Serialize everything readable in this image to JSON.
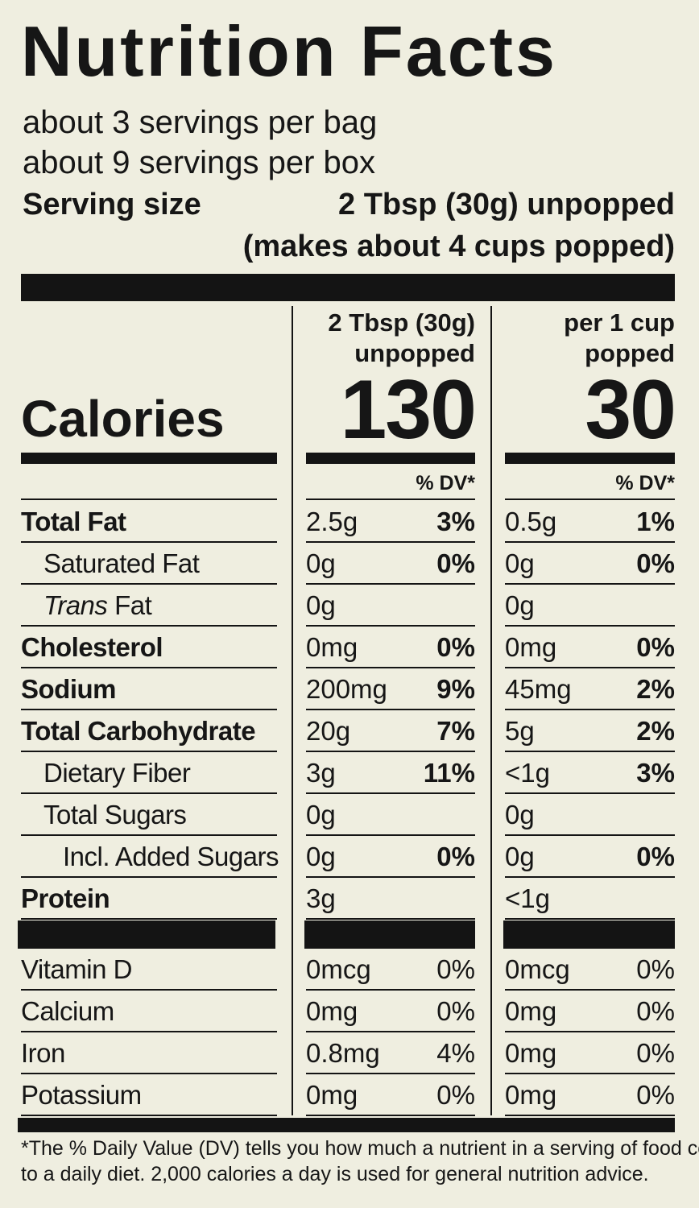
{
  "title": "Nutrition Facts",
  "servings": [
    "about 3 servings per bag",
    "about 9 servings per box"
  ],
  "serving_size": {
    "label": "Serving size",
    "lines": [
      "2 Tbsp (30g) unpopped",
      "(makes about 4 cups popped)"
    ]
  },
  "calories_label": "Calories",
  "columns": [
    {
      "header": [
        "2 Tbsp (30g)",
        "unpopped"
      ],
      "calories": "130",
      "dv_header": "% DV*"
    },
    {
      "header": [
        "per 1 cup",
        "popped"
      ],
      "calories": "30",
      "dv_header": "% DV*"
    }
  ],
  "nutrients": [
    {
      "name": "Total Fat",
      "bold": true,
      "indent": 0,
      "values": [
        [
          "2.5g",
          "3%"
        ],
        [
          "0.5g",
          "1%"
        ]
      ]
    },
    {
      "name": "Saturated Fat",
      "bold": false,
      "indent": 1,
      "values": [
        [
          "0g",
          "0%"
        ],
        [
          "0g",
          "0%"
        ]
      ]
    },
    {
      "prefix": "Trans",
      "name": "Fat",
      "bold": false,
      "indent": 1,
      "values": [
        [
          "0g"
        ],
        [
          "0g"
        ]
      ]
    },
    {
      "name": "Cholesterol",
      "bold": true,
      "indent": 0,
      "values": [
        [
          "0mg",
          "0%"
        ],
        [
          "0mg",
          "0%"
        ]
      ]
    },
    {
      "name": "Sodium",
      "bold": true,
      "indent": 0,
      "values": [
        [
          "200mg",
          "9%"
        ],
        [
          "45mg",
          "2%"
        ]
      ]
    },
    {
      "name": "Total Carbohydrate",
      "bold": true,
      "indent": 0,
      "values": [
        [
          "20g",
          "7%"
        ],
        [
          "5g",
          "2%"
        ]
      ]
    },
    {
      "name": "Dietary Fiber",
      "bold": false,
      "indent": 1,
      "values": [
        [
          "3g",
          "11%"
        ],
        [
          "<1g",
          "3%"
        ]
      ]
    },
    {
      "name": "Total Sugars",
      "bold": false,
      "indent": 1,
      "values": [
        [
          "0g"
        ],
        [
          "0g"
        ]
      ]
    },
    {
      "name": "Incl. Added Sugars",
      "bold": false,
      "indent": 2,
      "values": [
        [
          "0g",
          "0%"
        ],
        [
          "0g",
          "0%"
        ]
      ]
    },
    {
      "name": "Protein",
      "bold": true,
      "indent": 0,
      "values": [
        [
          "3g"
        ],
        [
          "<1g"
        ]
      ]
    }
  ],
  "vitamins": [
    {
      "name": "Vitamin D",
      "values": [
        [
          "0mcg",
          "0%"
        ],
        [
          "0mcg",
          "0%"
        ]
      ]
    },
    {
      "name": "Calcium",
      "values": [
        [
          "0mg",
          "0%"
        ],
        [
          "0mg",
          "0%"
        ]
      ]
    },
    {
      "name": "Iron",
      "values": [
        [
          "0.8mg",
          "4%"
        ],
        [
          "0mg",
          "0%"
        ]
      ]
    },
    {
      "name": "Potassium",
      "values": [
        [
          "0mg",
          "0%"
        ],
        [
          "0mg",
          "0%"
        ]
      ]
    }
  ],
  "footnote": [
    "*The % Daily Value (DV) tells you how much a nutrient in a serving of food contributes",
    "to a daily diet. 2,000 calories a day is used for general nutrition advice."
  ]
}
